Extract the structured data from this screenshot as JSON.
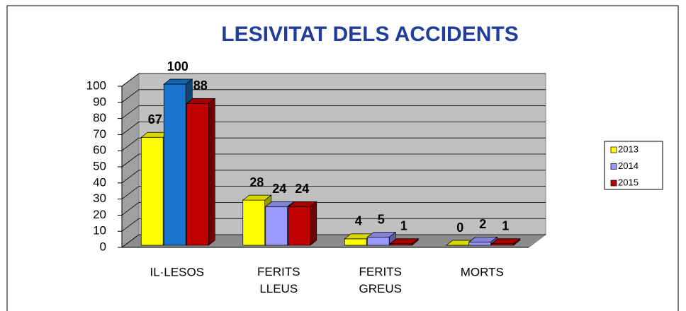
{
  "chart_data": {
    "type": "bar3d",
    "title": "LESIVITAT DELS ACCIDENTS",
    "categories": [
      "IL·LESOS",
      "FERITS LLEUS",
      "FERITS GREUS",
      "MORTS"
    ],
    "series": [
      {
        "name": "2013",
        "color": "#ffff00",
        "values": [
          67,
          28,
          4,
          0
        ]
      },
      {
        "name": "2014",
        "color": "#9999ff",
        "colors": [
          "#1874cd",
          "#9999ff",
          "#9999ff",
          "#9999ff"
        ],
        "values": [
          100,
          24,
          5,
          2
        ]
      },
      {
        "name": "2015",
        "color": "#c00000",
        "values": [
          88,
          24,
          1,
          1
        ]
      }
    ],
    "ylim": [
      0,
      100
    ],
    "yticks": [
      0,
      10,
      20,
      30,
      40,
      50,
      60,
      70,
      80,
      90,
      100
    ],
    "grid": true,
    "legend": "right"
  }
}
